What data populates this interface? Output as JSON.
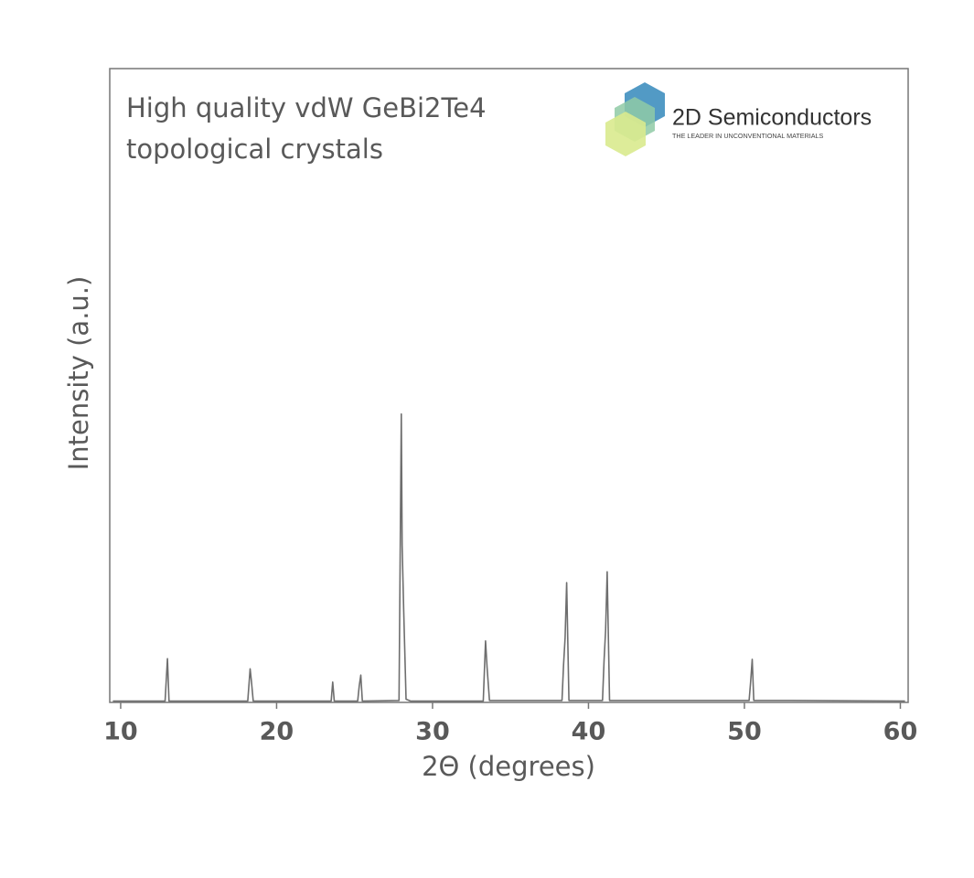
{
  "chart_data": {
    "type": "line",
    "title": [
      "High quality vdW GeBi2Te4",
      "topological crystals"
    ],
    "logo": {
      "name": "2D Semiconductors",
      "tagline": "THE LEADER IN UNCONVENTIONAL MATERIALS"
    },
    "x_label": "2Θ (degrees)",
    "y_label": "Intensity (a.u.)",
    "x": [
      9.5,
      12.85,
      13.0,
      13.1,
      18.15,
      18.3,
      18.38,
      18.5,
      23.5,
      23.6,
      23.7,
      25.2,
      25.3,
      25.4,
      25.5,
      27.85,
      28.0,
      28.05,
      28.15,
      28.3,
      28.6,
      33.25,
      33.4,
      33.5,
      33.65,
      38.3,
      38.4,
      38.5,
      38.6,
      38.75,
      40.9,
      41.0,
      41.1,
      41.2,
      41.35,
      50.3,
      50.4,
      50.5,
      50.6,
      53.0,
      60.3
    ],
    "values": [
      0.2,
      0.2,
      6.9,
      0.2,
      0.2,
      5.3,
      3.5,
      0.2,
      0.2,
      3.2,
      0.2,
      0.2,
      2.6,
      4.3,
      0.2,
      0.3,
      45.5,
      24.8,
      14.6,
      0.5,
      0.2,
      0.2,
      9.7,
      5.5,
      0.3,
      0.3,
      5.9,
      10.2,
      18.9,
      0.3,
      0.3,
      6.6,
      11.4,
      20.6,
      0.3,
      0.3,
      3.3,
      6.8,
      0.3,
      0.3,
      0.2
    ],
    "color": "#6e6e6e",
    "xlim": [
      9.3,
      60.5
    ],
    "xticks": [
      10,
      20,
      30,
      40,
      50,
      60
    ],
    "ylim": [
      0,
      100
    ]
  }
}
